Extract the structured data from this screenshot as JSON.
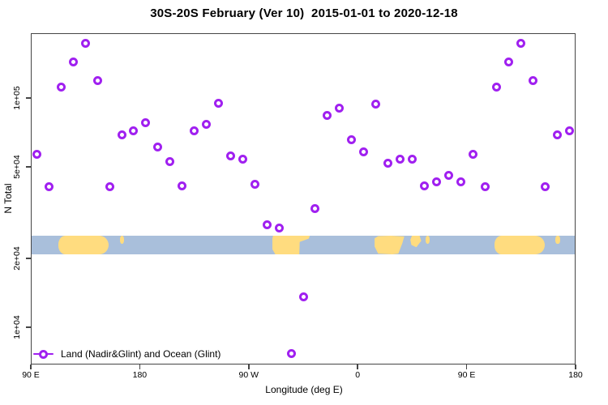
{
  "chart_data": {
    "type": "scatter",
    "title": "30S-20S February (Ver 10)  2015-01-01 to 2020-12-18",
    "xlabel": "Longitude (deg E)",
    "ylabel": "N Total",
    "x_axis": {
      "description": "longitude wrapping eastward across 450 degrees",
      "range_axis_deg": [
        90,
        540
      ],
      "ticks": [
        {
          "axis_deg": 90,
          "label": "90 E"
        },
        {
          "axis_deg": 180,
          "label": "180"
        },
        {
          "axis_deg": 270,
          "label": "90 W"
        },
        {
          "axis_deg": 360,
          "label": "0"
        },
        {
          "axis_deg": 450,
          "label": "90 E"
        },
        {
          "axis_deg": 540,
          "label": "180"
        }
      ]
    },
    "y_axis": {
      "scale": "log10",
      "range": [
        6900,
        192000
      ],
      "ticks": [
        {
          "value": 100000,
          "label": "1e+05"
        },
        {
          "value": 50000,
          "label": "5e+04"
        },
        {
          "value": 20000,
          "label": "2e+04"
        },
        {
          "value": 10000,
          "label": "1e+04"
        }
      ]
    },
    "series": [
      {
        "name": "Land (Nadir&Glint) and Ocean (Glint)",
        "marker": "open-circle",
        "color": "#A020F0",
        "point_format": [
          "lon_axis_deg",
          "n_total"
        ],
        "points": [
          [
            95,
            57000
          ],
          [
            105,
            41000
          ],
          [
            115,
            112000
          ],
          [
            125,
            144000
          ],
          [
            135,
            173000
          ],
          [
            145,
            119000
          ],
          [
            155,
            41000
          ],
          [
            165,
            69000
          ],
          [
            175,
            72000
          ],
          [
            185,
            78000
          ],
          [
            195,
            61000
          ],
          [
            205,
            53000
          ],
          [
            215,
            41200
          ],
          [
            225,
            72000
          ],
          [
            235,
            77000
          ],
          [
            245,
            95000
          ],
          [
            255,
            56000
          ],
          [
            265,
            54000
          ],
          [
            275,
            42000
          ],
          [
            285,
            28000
          ],
          [
            295,
            27000
          ],
          [
            305,
            7700
          ],
          [
            315,
            13600
          ],
          [
            325,
            33000
          ],
          [
            335,
            84000
          ],
          [
            345,
            90000
          ],
          [
            355,
            66000
          ],
          [
            365,
            58000
          ],
          [
            375,
            94000
          ],
          [
            385,
            52000
          ],
          [
            395,
            54000
          ],
          [
            405,
            54000
          ],
          [
            415,
            41500
          ],
          [
            425,
            43000
          ],
          [
            435,
            46000
          ],
          [
            445,
            43000
          ],
          [
            455,
            57000
          ],
          [
            465,
            41000
          ],
          [
            475,
            112000
          ],
          [
            485,
            144000
          ],
          [
            495,
            173000
          ],
          [
            505,
            119000
          ],
          [
            515,
            41000
          ],
          [
            525,
            69000
          ],
          [
            535,
            72000
          ]
        ]
      }
    ],
    "map_band": {
      "description": "30S-20S latitude land/ocean strip",
      "n_value_range": [
        20800,
        25100
      ],
      "ocean_color": "#A9BFDB",
      "land_color": "#FFDC7F",
      "land_patches": [
        {
          "name": "australia-west-copy",
          "shape": "australia",
          "deg0": 113.0,
          "deg1": 154.5
        },
        {
          "name": "new-caledonia-west-copy",
          "shape": "islet",
          "deg0": 163.5,
          "deg1": 167.0
        },
        {
          "name": "south-america",
          "shape": "south-america",
          "deg0": 289.5,
          "deg1": 320.5
        },
        {
          "name": "africa",
          "shape": "africa",
          "deg0": 374.0,
          "deg1": 398.5
        },
        {
          "name": "madagascar",
          "shape": "madagascar",
          "deg0": 403.5,
          "deg1": 412.5
        },
        {
          "name": "mauritius-reunion",
          "shape": "islet",
          "deg0": 416.0,
          "deg1": 419.5
        },
        {
          "name": "australia-east-copy",
          "shape": "australia",
          "deg0": 473.0,
          "deg1": 514.5
        },
        {
          "name": "new-caledonia-east-copy",
          "shape": "islet",
          "deg0": 523.5,
          "deg1": 527.0
        }
      ]
    },
    "legend": {
      "position": "bottom-left-inside-plot"
    }
  }
}
